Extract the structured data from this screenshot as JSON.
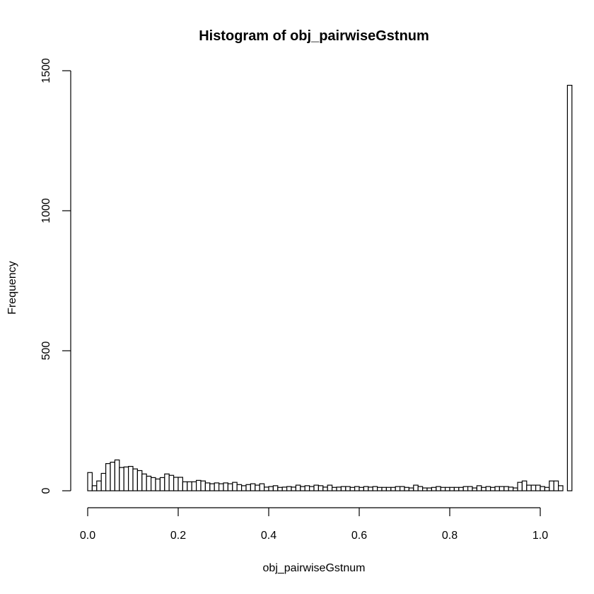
{
  "chart_data": {
    "type": "bar",
    "title": "Histogram of obj_pairwiseGstnum",
    "xlabel": "obj_pairwiseGstnum",
    "ylabel": "Frequency",
    "xlim": [
      0,
      1
    ],
    "ylim": [
      0,
      1500
    ],
    "x_ticks": [
      "0.0",
      "0.2",
      "0.4",
      "0.6",
      "0.8",
      "1.0"
    ],
    "y_ticks": [
      "0",
      "500",
      "1000",
      "1500"
    ],
    "bin_width": 0.01,
    "bin_start": 0,
    "values": [
      65,
      18,
      35,
      62,
      97,
      102,
      110,
      83,
      85,
      87,
      78,
      72,
      60,
      52,
      47,
      42,
      47,
      60,
      55,
      48,
      48,
      32,
      32,
      32,
      37,
      35,
      28,
      25,
      28,
      25,
      28,
      25,
      30,
      22,
      18,
      22,
      25,
      20,
      25,
      13,
      15,
      18,
      12,
      13,
      15,
      13,
      20,
      15,
      18,
      15,
      20,
      18,
      13,
      20,
      12,
      13,
      15,
      15,
      12,
      15,
      12,
      15,
      13,
      15,
      12,
      12,
      12,
      12,
      15,
      15,
      12,
      10,
      20,
      15,
      10,
      10,
      12,
      15,
      12,
      12,
      12,
      12,
      12,
      15,
      15,
      10,
      18,
      12,
      15,
      12,
      15,
      15,
      15,
      13,
      10,
      30,
      35,
      20,
      20,
      20,
      15,
      12,
      35,
      35,
      18,
      0,
      1448
    ]
  }
}
